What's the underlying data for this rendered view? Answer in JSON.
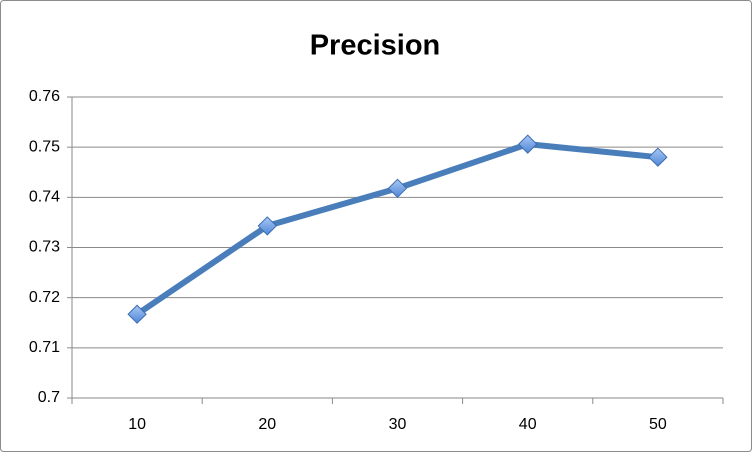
{
  "chart_data": {
    "type": "line",
    "title": "Precision",
    "categories": [
      "10",
      "20",
      "30",
      "40",
      "50"
    ],
    "series": [
      {
        "name": "Precision",
        "color": "#4a7ebb",
        "values": [
          0.7167,
          0.7343,
          0.7418,
          0.7506,
          0.748
        ]
      }
    ],
    "ylim": [
      0.7,
      0.76
    ],
    "yticks": [
      0.7,
      0.71,
      0.72,
      0.73,
      0.74,
      0.75,
      0.76
    ],
    "grid": true
  }
}
